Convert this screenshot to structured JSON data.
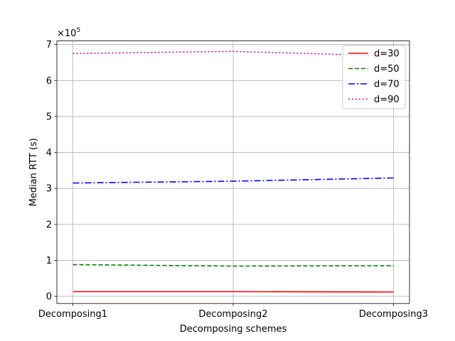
{
  "chart_data": {
    "type": "line",
    "title": "",
    "xlabel": "Decomposing schemes",
    "ylabel": "Median RTT (s)",
    "y_offset_label": "×10",
    "y_offset_exponent": "5",
    "categories": [
      "Decomposing1",
      "Decomposing2",
      "Decomposing3"
    ],
    "ylim": [
      -0.2,
      7.1
    ],
    "yticks": [
      0,
      1,
      2,
      3,
      4,
      5,
      6,
      7
    ],
    "ytick_labels": [
      "0",
      "1",
      "2",
      "3",
      "4",
      "5",
      "6",
      "7"
    ],
    "grid": true,
    "legend_position": "top-right",
    "series": [
      {
        "name": "d=30",
        "color": "#ff0000",
        "style": "solid",
        "values": [
          0.13,
          0.13,
          0.12
        ]
      },
      {
        "name": "d=50",
        "color": "#008000",
        "style": "dashed",
        "values": [
          0.88,
          0.84,
          0.85
        ]
      },
      {
        "name": "d=70",
        "color": "#0000ff",
        "style": "dashdot",
        "values": [
          3.15,
          3.2,
          3.29
        ]
      },
      {
        "name": "d=90",
        "color": "#bf00bf",
        "style": "dotted",
        "values": [
          6.75,
          6.81,
          6.68
        ]
      }
    ]
  }
}
